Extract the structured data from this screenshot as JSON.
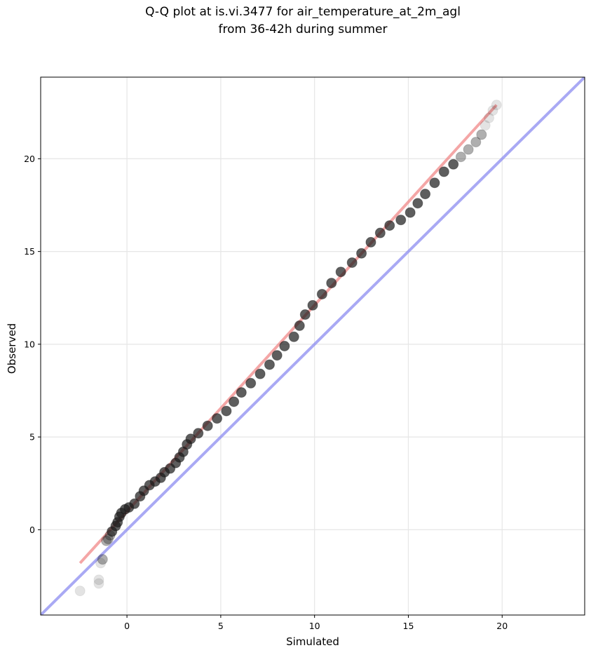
{
  "chart_data": {
    "type": "scatter",
    "title_lines": [
      "Q-Q plot at is.vi.3477 for air_temperature_at_2m_agl",
      "from 36-42h during summer"
    ],
    "xlabel": "Simulated",
    "ylabel": "Observed",
    "xlim": [
      -4.6,
      24.4
    ],
    "ylim": [
      -4.6,
      24.4
    ],
    "xticks": [
      0,
      5,
      10,
      15,
      20
    ],
    "yticks": [
      0,
      5,
      10,
      15,
      20
    ],
    "grid": true,
    "colors": {
      "points": "#1a1a1a",
      "fit_line": "#f08080",
      "identity_line": "#8c8cf0",
      "grid": "#e6e6e6"
    },
    "fit_line": {
      "from": [
        -2.5,
        -1.8
      ],
      "to": [
        19.7,
        22.9
      ]
    },
    "identity_line": {
      "from": [
        -4.6,
        -4.6
      ],
      "to": [
        24.4,
        24.4
      ]
    },
    "points": [
      [
        -2.5,
        -3.3
      ],
      [
        -1.5,
        -2.9
      ],
      [
        -1.5,
        -2.7
      ],
      [
        -1.4,
        -1.8
      ],
      [
        -1.3,
        -1.6
      ],
      [
        -1.1,
        -0.6
      ],
      [
        -1.0,
        -0.5
      ],
      [
        -0.9,
        -0.3
      ],
      [
        -0.8,
        -0.1
      ],
      [
        -0.6,
        0.2
      ],
      [
        -0.5,
        0.4
      ],
      [
        -0.4,
        0.7
      ],
      [
        -0.3,
        0.9
      ],
      [
        -0.1,
        1.1
      ],
      [
        0.1,
        1.2
      ],
      [
        0.4,
        1.4
      ],
      [
        0.7,
        1.8
      ],
      [
        0.9,
        2.1
      ],
      [
        1.2,
        2.4
      ],
      [
        1.5,
        2.6
      ],
      [
        1.8,
        2.8
      ],
      [
        2.0,
        3.1
      ],
      [
        2.3,
        3.3
      ],
      [
        2.6,
        3.6
      ],
      [
        2.8,
        3.9
      ],
      [
        3.0,
        4.2
      ],
      [
        3.2,
        4.6
      ],
      [
        3.4,
        4.9
      ],
      [
        3.8,
        5.2
      ],
      [
        4.3,
        5.6
      ],
      [
        4.8,
        6.0
      ],
      [
        5.3,
        6.4
      ],
      [
        5.7,
        6.9
      ],
      [
        6.1,
        7.4
      ],
      [
        6.6,
        7.9
      ],
      [
        7.1,
        8.4
      ],
      [
        7.6,
        8.9
      ],
      [
        8.0,
        9.4
      ],
      [
        8.4,
        9.9
      ],
      [
        8.9,
        10.4
      ],
      [
        9.2,
        11.0
      ],
      [
        9.5,
        11.6
      ],
      [
        9.9,
        12.1
      ],
      [
        10.4,
        12.7
      ],
      [
        10.9,
        13.3
      ],
      [
        11.4,
        13.9
      ],
      [
        12.0,
        14.4
      ],
      [
        12.5,
        14.9
      ],
      [
        13.0,
        15.5
      ],
      [
        13.5,
        16.0
      ],
      [
        14.0,
        16.4
      ],
      [
        14.6,
        16.7
      ],
      [
        15.1,
        17.1
      ],
      [
        15.5,
        17.6
      ],
      [
        15.9,
        18.1
      ],
      [
        16.4,
        18.7
      ],
      [
        16.9,
        19.3
      ],
      [
        17.4,
        19.7
      ],
      [
        17.8,
        20.1
      ],
      [
        18.2,
        20.5
      ],
      [
        18.6,
        20.9
      ],
      [
        18.9,
        21.3
      ],
      [
        19.1,
        21.8
      ],
      [
        19.3,
        22.2
      ],
      [
        19.5,
        22.6
      ],
      [
        19.7,
        22.9
      ]
    ]
  }
}
